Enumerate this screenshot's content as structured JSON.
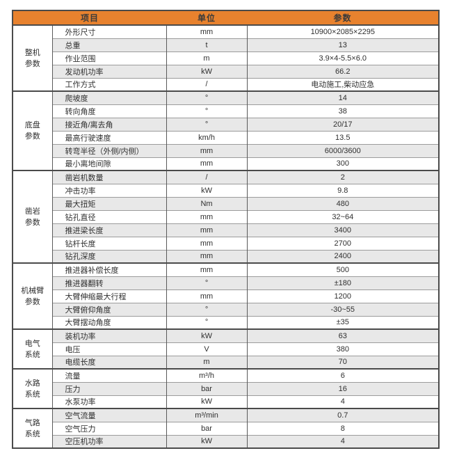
{
  "header": {
    "item_label": "项目",
    "unit_label": "单位",
    "param_label": "参数"
  },
  "colors": {
    "header_bg": "#E8822E",
    "header_text": "#3B3B3B",
    "text": "#2F2F2F",
    "alt_row_bg": "#E8E8E8",
    "border_dark": "#4A4A4A",
    "border_mid": "#5A5A5A",
    "border_light": "#9B9B9B",
    "page_bg": "#FFFFFF"
  },
  "groups": [
    {
      "name": "整机参数",
      "lines": [
        "整机",
        "参数"
      ],
      "rows": [
        {
          "item": "外形尺寸",
          "unit": "mm",
          "value": "10900×2085×2295"
        },
        {
          "item": "总重",
          "unit": "t",
          "value": "13"
        },
        {
          "item": "作业范围",
          "unit": "m",
          "value": "3.9×4-5.5×6.0"
        },
        {
          "item": "发动机功率",
          "unit": "kW",
          "value": "66.2"
        },
        {
          "item": "工作方式",
          "unit": "/",
          "value": "电动施工,柴动应急"
        }
      ]
    },
    {
      "name": "底盘参数",
      "lines": [
        "底盘",
        "参数"
      ],
      "rows": [
        {
          "item": "爬坡度",
          "unit": "°",
          "value": "14"
        },
        {
          "item": "转向角度",
          "unit": "°",
          "value": "38"
        },
        {
          "item": "接近角/离去角",
          "unit": "°",
          "value": "20/17"
        },
        {
          "item": "最高行驶速度",
          "unit": "km/h",
          "value": "13.5"
        },
        {
          "item": "转弯半径（外侧/内侧）",
          "unit": "mm",
          "value": "6000/3600"
        },
        {
          "item": "最小离地间隙",
          "unit": "mm",
          "value": "300"
        }
      ]
    },
    {
      "name": "凿岩参数",
      "lines": [
        "凿岩",
        "参数"
      ],
      "rows": [
        {
          "item": "凿岩机数量",
          "unit": "/",
          "value": "2"
        },
        {
          "item": "冲击功率",
          "unit": "kW",
          "value": "9.8"
        },
        {
          "item": "最大扭矩",
          "unit": "Nm",
          "value": "480"
        },
        {
          "item": "钻孔直径",
          "unit": "mm",
          "value": "32~64"
        },
        {
          "item": "推进梁长度",
          "unit": "mm",
          "value": "3400"
        },
        {
          "item": "钻杆长度",
          "unit": "mm",
          "value": "2700"
        },
        {
          "item": "钻孔深度",
          "unit": "mm",
          "value": "2400"
        }
      ]
    },
    {
      "name": "机械臂参数",
      "lines": [
        "机械臂",
        "参数"
      ],
      "rows": [
        {
          "item": "推进器补偿长度",
          "unit": "mm",
          "value": "500"
        },
        {
          "item": "推进器翻转",
          "unit": "°",
          "value": "±180"
        },
        {
          "item": "大臂伸缩最大行程",
          "unit": "mm",
          "value": "1200"
        },
        {
          "item": "大臂俯仰角度",
          "unit": "°",
          "value": "-30~55"
        },
        {
          "item": "大臂摆动角度",
          "unit": "°",
          "value": "±35"
        }
      ]
    },
    {
      "name": "电气系统",
      "lines": [
        "电气",
        "系统"
      ],
      "rows": [
        {
          "item": "装机功率",
          "unit": "kW",
          "value": "63"
        },
        {
          "item": "电压",
          "unit": "V",
          "value": "380"
        },
        {
          "item": "电缆长度",
          "unit": "m",
          "value": "70"
        }
      ]
    },
    {
      "name": "水路系统",
      "lines": [
        "水路",
        "系统"
      ],
      "rows": [
        {
          "item": "流量",
          "unit": "m³/h",
          "value": "6"
        },
        {
          "item": "压力",
          "unit": "bar",
          "value": "16"
        },
        {
          "item": "水泵功率",
          "unit": "kW",
          "value": "4"
        }
      ]
    },
    {
      "name": "气路系统",
      "lines": [
        "气路",
        "系统"
      ],
      "rows": [
        {
          "item": "空气流量",
          "unit": "m³/min",
          "value": "0.7"
        },
        {
          "item": "空气压力",
          "unit": "bar",
          "value": "8"
        },
        {
          "item": "空压机功率",
          "unit": "kW",
          "value": "4"
        }
      ]
    }
  ]
}
